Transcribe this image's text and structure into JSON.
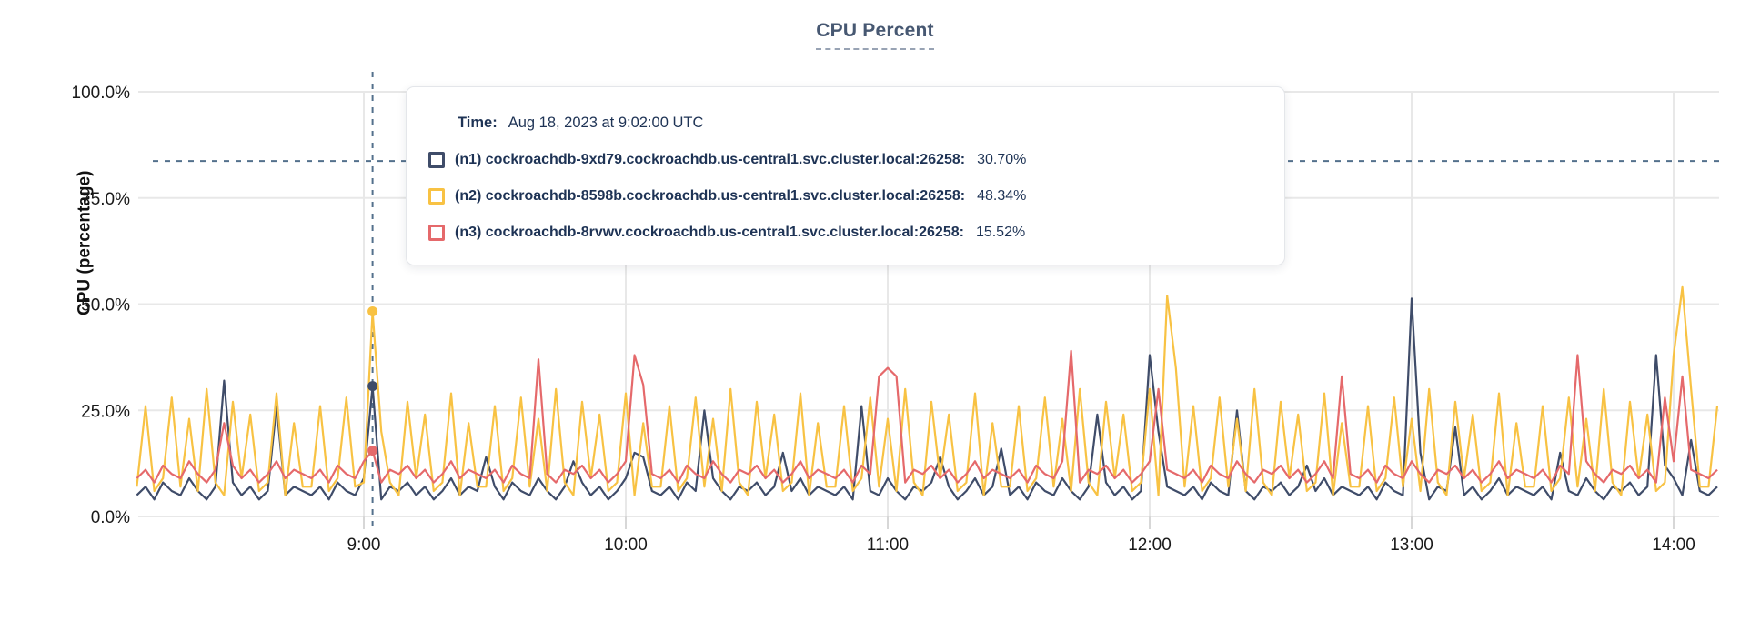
{
  "page": {
    "title": "CPU Percent"
  },
  "tooltip": {
    "time_label": "Time:",
    "time_value": "Aug 18, 2023 at 9:02:00 UTC",
    "rows": [
      {
        "label": "(n1) cockroachdb-9xd79.cockroachdb.us-central1.svc.cluster.local:26258:",
        "value": "30.70%",
        "color": "#3f4c69"
      },
      {
        "label": "(n2) cockroachdb-8598b.cockroachdb.us-central1.svc.cluster.local:26258:",
        "value": "48.34%",
        "color": "#f8c243"
      },
      {
        "label": "(n3) cockroachdb-8rvwv.cockroachdb.us-central1.svc.cluster.local:26258:",
        "value": "15.52%",
        "color": "#e5696b"
      }
    ]
  },
  "chart_data": {
    "type": "line",
    "title": "CPU Percent",
    "xlabel": "",
    "ylabel": "CPU (percentage)",
    "ylim": [
      0,
      100
    ],
    "grid": true,
    "legend_position": "tooltip",
    "y_ticks": [
      {
        "pct": 0,
        "label": "0.0%"
      },
      {
        "pct": 25,
        "label": "25.0%"
      },
      {
        "pct": 50,
        "label": "50.0%"
      },
      {
        "pct": 75,
        "label": "75.0%"
      },
      {
        "pct": 100,
        "label": "100.0%"
      }
    ],
    "x_ticks": [
      {
        "minute": 540,
        "label": "9:00"
      },
      {
        "minute": 600,
        "label": "10:00"
      },
      {
        "minute": 660,
        "label": "11:00"
      },
      {
        "minute": 720,
        "label": "12:00"
      },
      {
        "minute": 780,
        "label": "13:00"
      },
      {
        "minute": 840,
        "label": "14:00"
      }
    ],
    "start_minute": 488,
    "step_minutes": 2,
    "cursor": {
      "minute": 542,
      "pct": 83.7,
      "time": "Aug 18, 2023 at 9:02:00 UTC"
    },
    "colors": {
      "grid": "#e8e8e8",
      "crosshair": "#53708c",
      "axis_text": "#1a1a1a",
      "title": "#475872"
    },
    "series": [
      {
        "name": "(n1) cockroachdb-9xd79.cockroachdb.us-central1.svc.cluster.local:26258",
        "color": "#3f4c69",
        "cursor_value": 30.7,
        "values": [
          5,
          7,
          4,
          8,
          6,
          5,
          9,
          6,
          4,
          7,
          32,
          8,
          5,
          7,
          4,
          6,
          26,
          5,
          7,
          6,
          5,
          7,
          4,
          8,
          6,
          5,
          9,
          30.7,
          4,
          7,
          6,
          8,
          5,
          7,
          4,
          6,
          9,
          5,
          7,
          6,
          14,
          7,
          4,
          8,
          6,
          5,
          9,
          6,
          4,
          7,
          13,
          8,
          5,
          7,
          4,
          6,
          9,
          15,
          14,
          6,
          5,
          7,
          4,
          8,
          6,
          25,
          9,
          6,
          4,
          7,
          6,
          8,
          5,
          7,
          15,
          6,
          9,
          5,
          7,
          6,
          5,
          7,
          4,
          26,
          6,
          5,
          9,
          6,
          4,
          7,
          6,
          8,
          14,
          7,
          4,
          6,
          9,
          5,
          7,
          16,
          5,
          7,
          4,
          8,
          6,
          5,
          9,
          6,
          4,
          7,
          24,
          8,
          5,
          7,
          4,
          6,
          38,
          20,
          7,
          6,
          5,
          7,
          4,
          8,
          6,
          5,
          25,
          6,
          4,
          7,
          6,
          8,
          5,
          7,
          12,
          6,
          9,
          5,
          7,
          6,
          5,
          7,
          4,
          8,
          6,
          5,
          51.3,
          15,
          4,
          7,
          6,
          21,
          5,
          7,
          4,
          6,
          9,
          5,
          7,
          6,
          5,
          7,
          4,
          15,
          6,
          5,
          9,
          6,
          4,
          7,
          6,
          8,
          5,
          7,
          38,
          12,
          9,
          5,
          18,
          6,
          5,
          7
        ]
      },
      {
        "name": "(n2) cockroachdb-8598b.cockroachdb.us-central1.svc.cluster.local:26258",
        "color": "#f8c243",
        "cursor_value": 48.34,
        "values": [
          7,
          26,
          6,
          9,
          28,
          7,
          23,
          6,
          30,
          8,
          5,
          27,
          9,
          24,
          6,
          8,
          29,
          5,
          22,
          7,
          7,
          26,
          6,
          9,
          28,
          7,
          8,
          48.3,
          20,
          8,
          5,
          27,
          9,
          24,
          6,
          8,
          29,
          5,
          22,
          7,
          7,
          26,
          6,
          9,
          28,
          7,
          23,
          6,
          30,
          8,
          5,
          27,
          9,
          24,
          6,
          8,
          29,
          5,
          22,
          7,
          7,
          26,
          6,
          9,
          28,
          7,
          23,
          6,
          30,
          8,
          5,
          27,
          9,
          24,
          6,
          8,
          29,
          5,
          22,
          7,
          7,
          26,
          6,
          9,
          28,
          7,
          23,
          6,
          30,
          8,
          5,
          27,
          9,
          24,
          6,
          8,
          29,
          5,
          22,
          7,
          7,
          26,
          6,
          9,
          28,
          7,
          23,
          6,
          30,
          8,
          5,
          27,
          9,
          24,
          6,
          8,
          30,
          5,
          52,
          35,
          7,
          26,
          6,
          9,
          28,
          7,
          23,
          6,
          30,
          8,
          5,
          27,
          9,
          24,
          6,
          8,
          29,
          5,
          22,
          7,
          7,
          26,
          6,
          9,
          28,
          7,
          23,
          6,
          30,
          8,
          5,
          27,
          9,
          24,
          6,
          8,
          29,
          5,
          22,
          7,
          7,
          26,
          6,
          9,
          28,
          7,
          23,
          6,
          30,
          8,
          5,
          27,
          9,
          24,
          6,
          8,
          38,
          54,
          30,
          7,
          7,
          26
        ]
      },
      {
        "name": "(n3) cockroachdb-8rvwv.cockroachdb.us-central1.svc.cluster.local:26258",
        "color": "#e5696b",
        "cursor_value": 15.52,
        "values": [
          9,
          11,
          8,
          12,
          10,
          9,
          13,
          10,
          8,
          11,
          22,
          12,
          9,
          11,
          8,
          10,
          13,
          9,
          11,
          10,
          9,
          11,
          8,
          12,
          10,
          9,
          13,
          15.5,
          8,
          11,
          10,
          12,
          9,
          11,
          8,
          10,
          13,
          9,
          11,
          10,
          9,
          11,
          8,
          12,
          10,
          9,
          37,
          10,
          8,
          11,
          10,
          12,
          9,
          11,
          8,
          10,
          13,
          38,
          31,
          10,
          9,
          11,
          8,
          12,
          10,
          9,
          13,
          10,
          8,
          11,
          10,
          12,
          9,
          11,
          8,
          10,
          13,
          9,
          11,
          10,
          9,
          11,
          8,
          12,
          10,
          33,
          35,
          33,
          8,
          11,
          10,
          12,
          9,
          11,
          8,
          10,
          13,
          9,
          11,
          10,
          9,
          11,
          8,
          12,
          10,
          9,
          13,
          39,
          8,
          11,
          10,
          12,
          9,
          11,
          8,
          10,
          13,
          30,
          11,
          10,
          9,
          11,
          8,
          12,
          10,
          9,
          13,
          10,
          8,
          11,
          10,
          12,
          9,
          11,
          8,
          10,
          13,
          9,
          33,
          10,
          9,
          11,
          8,
          12,
          10,
          9,
          13,
          10,
          8,
          11,
          10,
          12,
          9,
          11,
          8,
          10,
          13,
          9,
          11,
          10,
          9,
          11,
          8,
          12,
          10,
          38,
          13,
          10,
          8,
          11,
          10,
          12,
          9,
          11,
          8,
          28,
          13,
          33,
          11,
          10,
          9,
          11
        ]
      }
    ]
  }
}
